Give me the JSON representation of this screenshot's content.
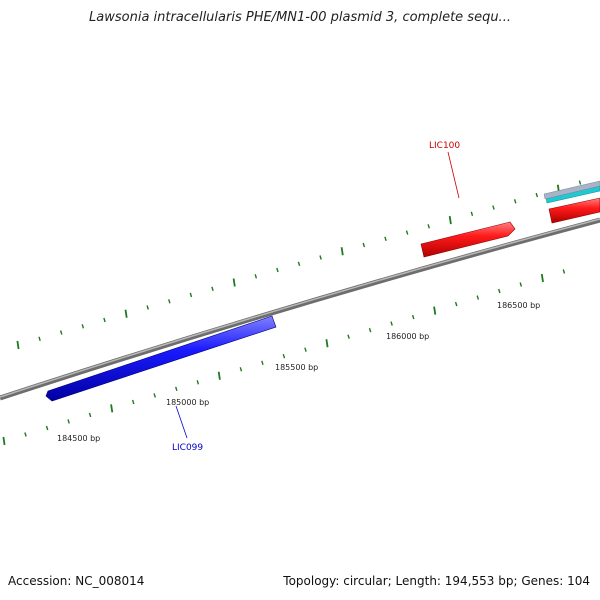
{
  "header": {
    "title": "Lawsonia intracellularis PHE/MN1-00 plasmid 3, complete sequ..."
  },
  "footer": {
    "accession": "Accession: NC_008014",
    "summary": "Topology: circular; Length: 194,553 bp; Genes: 104"
  },
  "colors": {
    "backbone": "#8a8a8a",
    "tick": "#1e7a1e",
    "gene_forward": "#ee1111",
    "gene_reverse": "#1111ee",
    "label_forward": "#cc0000",
    "label_reverse": "#0000cc"
  },
  "ticks": {
    "labels": [
      "184500 bp",
      "185000 bp",
      "185500 bp",
      "186000 bp",
      "186500 bp"
    ]
  },
  "genes": [
    {
      "name": "LIC099",
      "strand": "reverse"
    },
    {
      "name": "LIC100",
      "strand": "forward"
    }
  ]
}
